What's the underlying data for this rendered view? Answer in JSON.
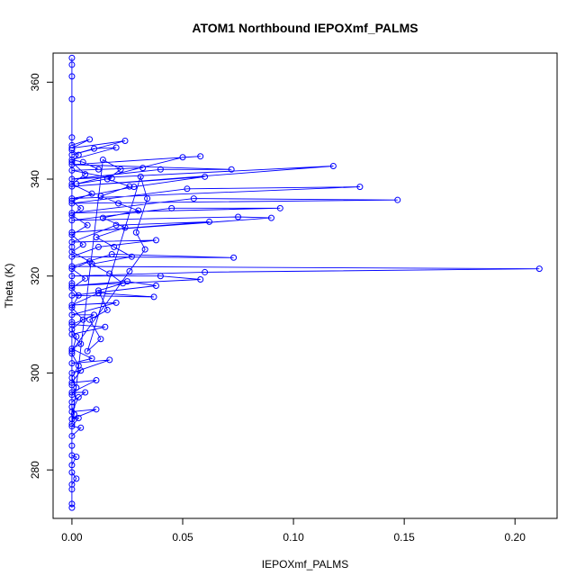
{
  "chart_data": {
    "type": "scatter",
    "title": "ATOM1 Northbound IEPOXmf_PALMS",
    "xlabel": "IEPOXmf_PALMS",
    "ylabel": "Theta (K)",
    "xlim": [
      -0.0085,
      0.219
    ],
    "ylim": [
      270,
      366
    ],
    "x_ticks": [
      0,
      0.05,
      0.1,
      0.15,
      0.2
    ],
    "x_tick_labels": [
      "0.00",
      "0.05",
      "0.10",
      "0.15",
      "0.20"
    ],
    "y_ticks": [
      280,
      300,
      320,
      340,
      360
    ],
    "y_tick_labels": [
      "280",
      "300",
      "320",
      "340",
      "360"
    ],
    "grid": false,
    "legend": "none",
    "series": [
      {
        "color": "#0000ff",
        "style": "points-and-lines",
        "marker": "open-circle",
        "points": [
          [
            0.0,
            365.0
          ],
          [
            0.0,
            363.6
          ],
          [
            0.0,
            361.2
          ],
          [
            0.0,
            356.5
          ],
          [
            0.0,
            348.6
          ],
          [
            0.0,
            347.0
          ],
          [
            0.008,
            348.2
          ],
          [
            0.0,
            346.4
          ],
          [
            0.024,
            347.9
          ],
          [
            0.0,
            345.0
          ],
          [
            0.01,
            346.3
          ],
          [
            0.02,
            346.5
          ],
          [
            0.0,
            344.0
          ],
          [
            0.005,
            343.5
          ],
          [
            0.012,
            342.0
          ],
          [
            0.032,
            342.3
          ],
          [
            0.0,
            341.8
          ],
          [
            0.018,
            340.2
          ],
          [
            0.002,
            339.0
          ],
          [
            0.05,
            344.5
          ],
          [
            0.058,
            344.7
          ],
          [
            0.0,
            343.0
          ],
          [
            0.072,
            342.0
          ],
          [
            0.04,
            342.0
          ],
          [
            0.0,
            340.0
          ],
          [
            0.118,
            342.7
          ],
          [
            0.0,
            338.5
          ],
          [
            0.06,
            340.5
          ],
          [
            0.028,
            338.4
          ],
          [
            0.0,
            336.0
          ],
          [
            0.13,
            338.4
          ],
          [
            0.052,
            338.0
          ],
          [
            0.0,
            335.0
          ],
          [
            0.147,
            335.7
          ],
          [
            0.055,
            336.0
          ],
          [
            0.0,
            333.0
          ],
          [
            0.094,
            334.0
          ],
          [
            0.045,
            334.0
          ],
          [
            0.0,
            331.5
          ],
          [
            0.075,
            332.2
          ],
          [
            0.09,
            332.0
          ],
          [
            0.0,
            329.0
          ],
          [
            0.062,
            331.2
          ],
          [
            0.02,
            330.5
          ],
          [
            0.0,
            327.0
          ],
          [
            0.038,
            327.4
          ],
          [
            0.012,
            326.0
          ],
          [
            0.0,
            324.0
          ],
          [
            0.073,
            323.8
          ],
          [
            0.018,
            324.5
          ],
          [
            0.0,
            322.0
          ],
          [
            0.211,
            321.5
          ],
          [
            0.06,
            320.8
          ],
          [
            0.0,
            320.0
          ],
          [
            0.04,
            320.0
          ],
          [
            0.058,
            319.3
          ],
          [
            0.0,
            318.0
          ],
          [
            0.025,
            318.9
          ],
          [
            0.038,
            318.0
          ],
          [
            0.0,
            316.0
          ],
          [
            0.037,
            315.7
          ],
          [
            0.012,
            316.5
          ],
          [
            0.0,
            314.0
          ],
          [
            0.02,
            314.5
          ],
          [
            0.0,
            312.0
          ],
          [
            0.01,
            312.0
          ],
          [
            0.0,
            310.0
          ],
          [
            0.015,
            309.5
          ],
          [
            0.0,
            308.0
          ],
          [
            0.004,
            306.0
          ],
          [
            0.0,
            305.0
          ],
          [
            0.009,
            303.0
          ],
          [
            0.0,
            302.0
          ],
          [
            0.017,
            302.7
          ],
          [
            0.0,
            300.0
          ],
          [
            0.004,
            300.5
          ],
          [
            0.0,
            298.0
          ],
          [
            0.011,
            298.5
          ],
          [
            0.0,
            296.0
          ],
          [
            0.006,
            296.0
          ],
          [
            0.0,
            294.0
          ],
          [
            0.003,
            295.0
          ],
          [
            0.0,
            292.0
          ],
          [
            0.011,
            292.5
          ],
          [
            0.0,
            290.5
          ],
          [
            0.003,
            290.7
          ],
          [
            0.0,
            289.0
          ],
          [
            0.004,
            288.7
          ],
          [
            0.0,
            287.0
          ],
          [
            0.0,
            285.0
          ],
          [
            0.0,
            283.0
          ],
          [
            0.002,
            282.7
          ],
          [
            0.0,
            281.0
          ],
          [
            0.0,
            279.5
          ],
          [
            0.002,
            278.2
          ],
          [
            0.0,
            277.0
          ],
          [
            0.0,
            276.0
          ],
          [
            0.0,
            273.0
          ],
          [
            0.0,
            272.2
          ],
          [
            0.0,
            346.0
          ],
          [
            0.003,
            345.0
          ],
          [
            0.0,
            343.5
          ],
          [
            0.006,
            341.0
          ],
          [
            0.0,
            339.0
          ],
          [
            0.009,
            337.0
          ],
          [
            0.0,
            335.5
          ],
          [
            0.004,
            334.0
          ],
          [
            0.0,
            332.5
          ],
          [
            0.007,
            330.5
          ],
          [
            0.0,
            328.5
          ],
          [
            0.005,
            326.5
          ],
          [
            0.0,
            325.0
          ],
          [
            0.008,
            323.0
          ],
          [
            0.0,
            321.5
          ],
          [
            0.006,
            319.5
          ],
          [
            0.0,
            317.5
          ],
          [
            0.003,
            316.0
          ],
          [
            0.0,
            313.5
          ],
          [
            0.005,
            311.0
          ],
          [
            0.0,
            309.0
          ],
          [
            0.002,
            307.5
          ],
          [
            0.0,
            304.0
          ],
          [
            0.003,
            301.5
          ],
          [
            0.0,
            299.0
          ],
          [
            0.002,
            297.0
          ],
          [
            0.0,
            295.5
          ],
          [
            0.0,
            293.0
          ],
          [
            0.001,
            291.5
          ],
          [
            0.0,
            289.5
          ],
          [
            0.014,
            344.0
          ],
          [
            0.022,
            342.0
          ],
          [
            0.016,
            340.0
          ],
          [
            0.026,
            338.5
          ],
          [
            0.013,
            336.5
          ],
          [
            0.021,
            335.0
          ],
          [
            0.03,
            333.5
          ],
          [
            0.014,
            332.0
          ],
          [
            0.024,
            330.0
          ],
          [
            0.011,
            328.0
          ],
          [
            0.019,
            326.0
          ],
          [
            0.027,
            324.0
          ],
          [
            0.009,
            322.5
          ],
          [
            0.017,
            320.5
          ],
          [
            0.023,
            318.5
          ],
          [
            0.012,
            317.0
          ],
          [
            0.016,
            313.0
          ],
          [
            0.008,
            311.0
          ],
          [
            0.013,
            307.0
          ],
          [
            0.007,
            304.5
          ],
          [
            0.031,
            340.5
          ],
          [
            0.034,
            336.0
          ],
          [
            0.029,
            329.0
          ],
          [
            0.033,
            325.5
          ],
          [
            0.026,
            321.0
          ],
          [
            0.0,
            304.5
          ],
          [
            0.0,
            297.5
          ],
          [
            0.0,
            310.5
          ],
          [
            0.0,
            318.5
          ],
          [
            0.0,
            326.0
          ]
        ]
      }
    ]
  }
}
